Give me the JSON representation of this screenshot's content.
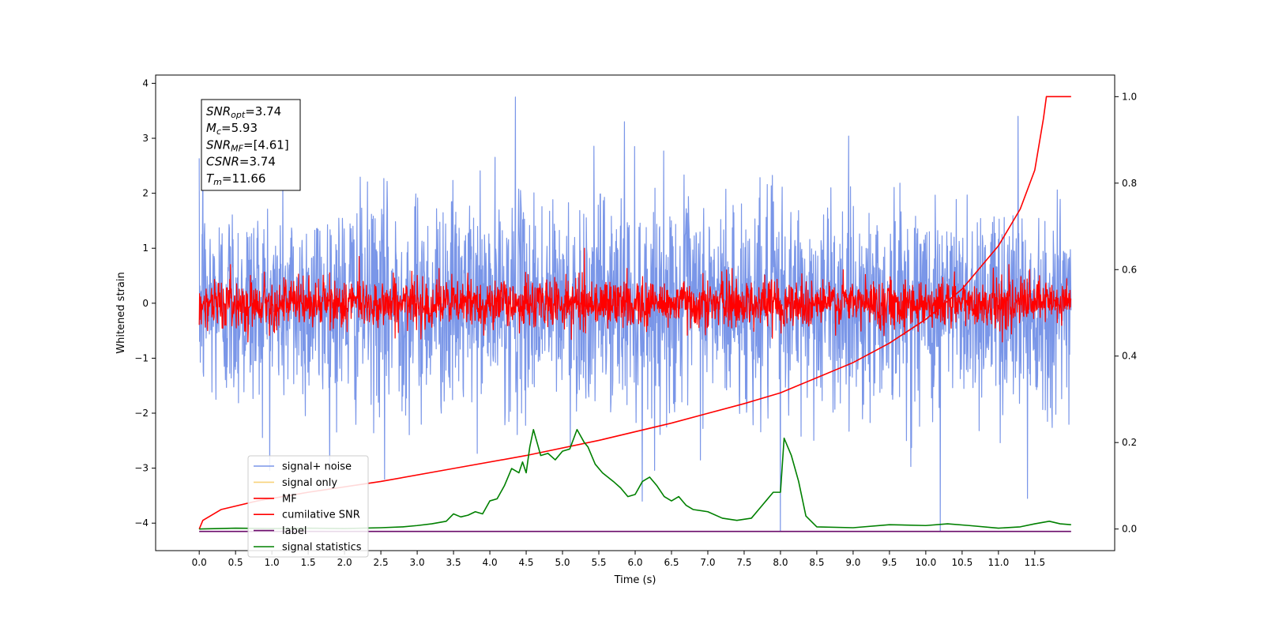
{
  "chart_data": {
    "type": "line",
    "xlabel": "Time (s)",
    "ylabel": "Whitened strain",
    "xlim": [
      -0.6,
      12.6
    ],
    "ylim": [
      -4.5,
      4.15
    ],
    "ylim_right": [
      -0.05,
      1.05
    ],
    "x_ticks": [
      "0.0",
      "0.5",
      "1.0",
      "1.5",
      "2.0",
      "2.5",
      "3.0",
      "3.5",
      "4.0",
      "4.5",
      "5.0",
      "5.5",
      "6.0",
      "6.5",
      "7.0",
      "7.5",
      "8.0",
      "8.5",
      "9.0",
      "9.5",
      "10.0",
      "10.5",
      "11.0",
      "11.5"
    ],
    "y_ticks": [
      "4",
      "3",
      "2",
      "1",
      "0",
      "−1",
      "−2",
      "−3",
      "−4"
    ],
    "y_ticks_right": [
      "1.0",
      "0.8",
      "0.6",
      "0.4",
      "0.2",
      "0.0"
    ],
    "legend_placement": "lower-left",
    "legend": [
      {
        "label": "signal+ noise",
        "color": "#7a96e8"
      },
      {
        "label": "signal only",
        "color": "#f7d27a"
      },
      {
        "label": "MF",
        "color": "#ff0000"
      },
      {
        "label": "cumilative SNR",
        "color": "#ff0000"
      },
      {
        "label": "label",
        "color": "#6a0a6a"
      },
      {
        "label": "signal statistics",
        "color": "#008000"
      }
    ],
    "stats_box": [
      {
        "sym": "SNR",
        "sub": "opt",
        "val": "=3.74"
      },
      {
        "sym": "M",
        "sub": "c",
        "val": "=5.93"
      },
      {
        "sym": "SNR",
        "sub": "MF",
        "val": "=[4.61]"
      },
      {
        "sym": "CSNR",
        "sub": "",
        "val": "=3.74"
      },
      {
        "sym": "T",
        "sub": "m",
        "val": "=11.66"
      }
    ],
    "series": [
      {
        "name": "signal+ noise",
        "axis": "left",
        "color": "#7a96e8",
        "x_range": [
          0,
          12.0
        ],
        "samples": 2400,
        "spread": 0.95,
        "spikes": [
          {
            "x": 4.35,
            "y": 3.75
          },
          {
            "x": 8.0,
            "y": -4.15
          },
          {
            "x": 10.2,
            "y": -4.15
          },
          {
            "x": 11.4,
            "y": -3.55
          },
          {
            "x": 6.1,
            "y": -3.6
          },
          {
            "x": 0.05,
            "y": 2.9
          },
          {
            "x": 11.27,
            "y": 3.4
          },
          {
            "x": 2.55,
            "y": -3.2
          },
          {
            "x": 5.85,
            "y": 3.3
          }
        ]
      },
      {
        "name": "MF",
        "axis": "left",
        "color": "#ff0000",
        "x_range": [
          0,
          12.0
        ],
        "samples": 2400,
        "spread": 0.22,
        "spikes": [
          {
            "x": 5.3,
            "y": 1.0
          },
          {
            "x": 2.2,
            "y": 0.85
          }
        ]
      },
      {
        "name": "cumilative SNR",
        "axis": "right",
        "color": "#ff0000",
        "points": [
          [
            0,
            0
          ],
          [
            0.05,
            0.02
          ],
          [
            0.3,
            0.045
          ],
          [
            0.8,
            0.065
          ],
          [
            1.5,
            0.085
          ],
          [
            2.5,
            0.11
          ],
          [
            3.5,
            0.14
          ],
          [
            4.5,
            0.17
          ],
          [
            5.5,
            0.205
          ],
          [
            6.5,
            0.245
          ],
          [
            7.5,
            0.29
          ],
          [
            8.0,
            0.315
          ],
          [
            8.5,
            0.35
          ],
          [
            9.0,
            0.385
          ],
          [
            9.5,
            0.43
          ],
          [
            10.0,
            0.485
          ],
          [
            10.5,
            0.555
          ],
          [
            11.0,
            0.655
          ],
          [
            11.3,
            0.74
          ],
          [
            11.5,
            0.83
          ],
          [
            11.62,
            0.95
          ],
          [
            11.66,
            1.0
          ],
          [
            12.0,
            1.0
          ]
        ]
      },
      {
        "name": "label",
        "axis": "left",
        "color": "#6a0a6a",
        "points": [
          [
            0,
            -4.15
          ],
          [
            12.0,
            -4.15
          ]
        ]
      },
      {
        "name": "signal statistics",
        "axis": "right",
        "color": "#008000",
        "points": [
          [
            0,
            0.0
          ],
          [
            0.5,
            0.002
          ],
          [
            1.0,
            0.001
          ],
          [
            1.5,
            0.002
          ],
          [
            2.0,
            0.001
          ],
          [
            2.5,
            0.003
          ],
          [
            2.8,
            0.005
          ],
          [
            3.0,
            0.008
          ],
          [
            3.2,
            0.012
          ],
          [
            3.4,
            0.018
          ],
          [
            3.5,
            0.035
          ],
          [
            3.6,
            0.028
          ],
          [
            3.7,
            0.032
          ],
          [
            3.8,
            0.04
          ],
          [
            3.9,
            0.035
          ],
          [
            4.0,
            0.065
          ],
          [
            4.1,
            0.07
          ],
          [
            4.2,
            0.1
          ],
          [
            4.3,
            0.14
          ],
          [
            4.4,
            0.13
          ],
          [
            4.45,
            0.155
          ],
          [
            4.5,
            0.13
          ],
          [
            4.55,
            0.19
          ],
          [
            4.6,
            0.23
          ],
          [
            4.65,
            0.2
          ],
          [
            4.7,
            0.17
          ],
          [
            4.8,
            0.175
          ],
          [
            4.9,
            0.16
          ],
          [
            5.0,
            0.18
          ],
          [
            5.1,
            0.185
          ],
          [
            5.2,
            0.23
          ],
          [
            5.3,
            0.2
          ],
          [
            5.35,
            0.19
          ],
          [
            5.45,
            0.15
          ],
          [
            5.55,
            0.13
          ],
          [
            5.7,
            0.11
          ],
          [
            5.8,
            0.095
          ],
          [
            5.9,
            0.075
          ],
          [
            6.0,
            0.08
          ],
          [
            6.1,
            0.11
          ],
          [
            6.2,
            0.12
          ],
          [
            6.3,
            0.1
          ],
          [
            6.4,
            0.075
          ],
          [
            6.5,
            0.065
          ],
          [
            6.6,
            0.075
          ],
          [
            6.7,
            0.055
          ],
          [
            6.8,
            0.045
          ],
          [
            7.0,
            0.04
          ],
          [
            7.2,
            0.025
          ],
          [
            7.4,
            0.02
          ],
          [
            7.6,
            0.025
          ],
          [
            7.7,
            0.045
          ],
          [
            7.8,
            0.065
          ],
          [
            7.9,
            0.085
          ],
          [
            8.0,
            0.085
          ],
          [
            8.05,
            0.21
          ],
          [
            8.15,
            0.17
          ],
          [
            8.25,
            0.11
          ],
          [
            8.35,
            0.03
          ],
          [
            8.5,
            0.005
          ],
          [
            9.0,
            0.003
          ],
          [
            9.5,
            0.01
          ],
          [
            10.0,
            0.008
          ],
          [
            10.3,
            0.012
          ],
          [
            10.6,
            0.008
          ],
          [
            11.0,
            0.002
          ],
          [
            11.3,
            0.005
          ],
          [
            11.5,
            0.012
          ],
          [
            11.7,
            0.018
          ],
          [
            11.85,
            0.012
          ],
          [
            12.0,
            0.01
          ]
        ]
      }
    ]
  }
}
